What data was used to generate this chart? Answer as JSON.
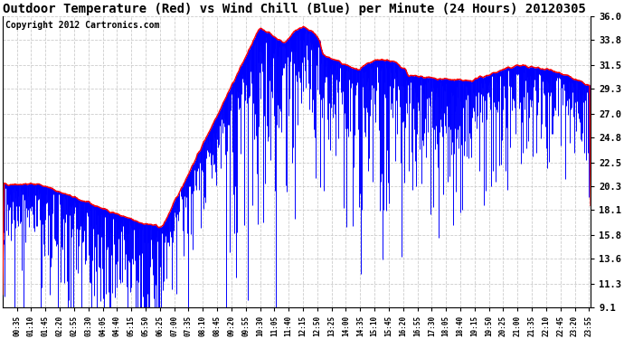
{
  "title": "Outdoor Temperature (Red) vs Wind Chill (Blue) per Minute (24 Hours) 20120305",
  "copyright": "Copyright 2012 Cartronics.com",
  "ylabel_right": [
    "36.0",
    "33.8",
    "31.5",
    "29.3",
    "27.0",
    "24.8",
    "22.5",
    "20.3",
    "18.1",
    "15.8",
    "13.6",
    "11.3",
    "9.1"
  ],
  "ymin": 9.1,
  "ymax": 36.0,
  "temp_color": "#ff0000",
  "wind_color": "#0000ff",
  "background_color": "#ffffff",
  "grid_color": "#cccccc",
  "title_fontsize": 10,
  "copyright_fontsize": 7,
  "seed": 42
}
